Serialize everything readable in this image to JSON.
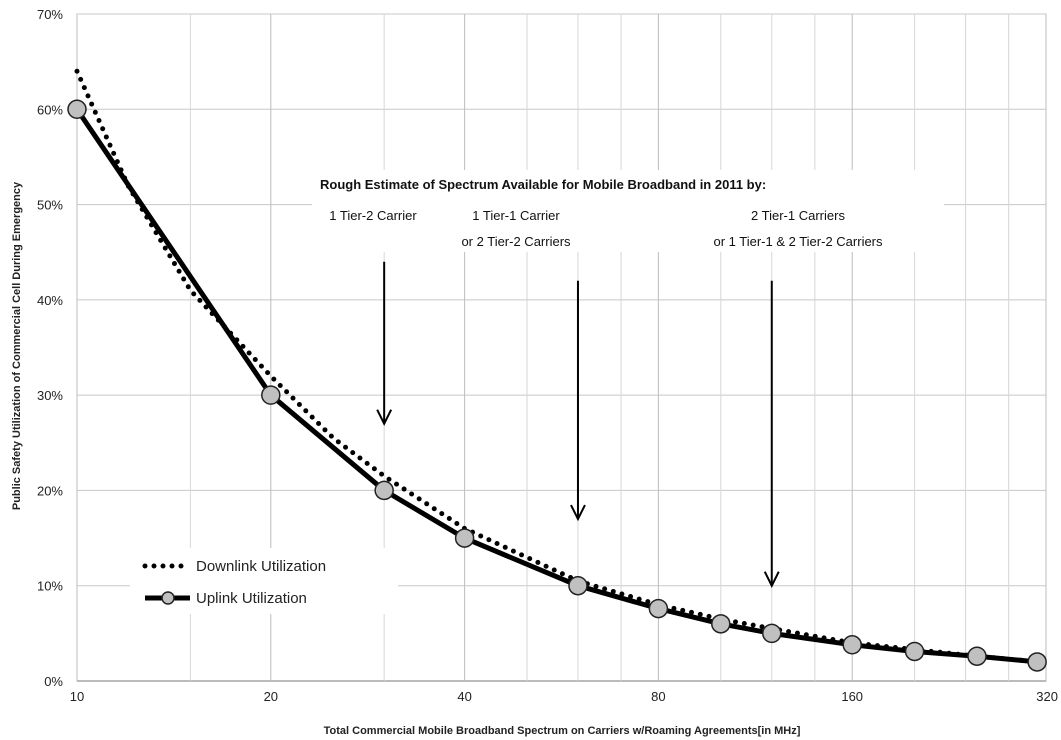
{
  "chart_data": {
    "type": "line",
    "xlabel": "Total Commercial Mobile Broadband Spectrum on Carriers w/Roaming Agreements[in MHz]",
    "ylabel": "Public Safety Utilization of Commercial Cell During Emergency",
    "x_scale": "log2",
    "xlim": [
      10,
      320
    ],
    "ylim": [
      0,
      70
    ],
    "x_ticks": [
      10,
      20,
      40,
      80,
      160,
      320
    ],
    "x_tick_labels": [
      "10",
      "20",
      "40",
      "80",
      "160",
      "320"
    ],
    "y_ticks": [
      0,
      10,
      20,
      30,
      40,
      50,
      60,
      70
    ],
    "y_tick_labels": [
      "0%",
      "10%",
      "20%",
      "30%",
      "40%",
      "50%",
      "60%",
      "70%"
    ],
    "grid": true,
    "legend_position": "bottom-left",
    "series": [
      {
        "name": "Downlink Utilization",
        "style": "dotted",
        "color": "#000000",
        "x": [
          10,
          12,
          15,
          20,
          25,
          30,
          40,
          60,
          80,
          100,
          120,
          160,
          200,
          250,
          300,
          320
        ],
        "y": [
          64,
          52,
          41,
          32,
          25.5,
          21.5,
          16,
          10.5,
          8,
          6.5,
          5.5,
          4,
          3.3,
          2.6,
          2.1,
          2
        ]
      },
      {
        "name": "Uplink Utilization",
        "style": "solid-with-markers",
        "color": "#000000",
        "marker_color": "#c0c0c0",
        "x": [
          10,
          20,
          30,
          40,
          60,
          80,
          100,
          120,
          160,
          200,
          250,
          310
        ],
        "y": [
          60,
          30,
          20,
          15,
          10,
          7.6,
          6,
          5,
          3.8,
          3.1,
          2.6,
          2
        ]
      }
    ],
    "annotation": {
      "title": "Rough Estimate of Spectrum Available for Mobile Broadband in 2011 by:",
      "groups": [
        {
          "lines": [
            "1 Tier-2 Carrier"
          ],
          "arrow_x": 30,
          "arrow_y_from": 44,
          "arrow_y_to": 27
        },
        {
          "lines": [
            "1 Tier-1 Carrier",
            "or 2 Tier-2 Carriers"
          ],
          "arrow_x": 60,
          "arrow_y_from": 42,
          "arrow_y_to": 17
        },
        {
          "lines": [
            "2 Tier-1 Carriers",
            "or 1 Tier-1 & 2 Tier-2 Carriers"
          ],
          "arrow_x": 120,
          "arrow_y_from": 42,
          "arrow_y_to": 10
        }
      ]
    }
  }
}
